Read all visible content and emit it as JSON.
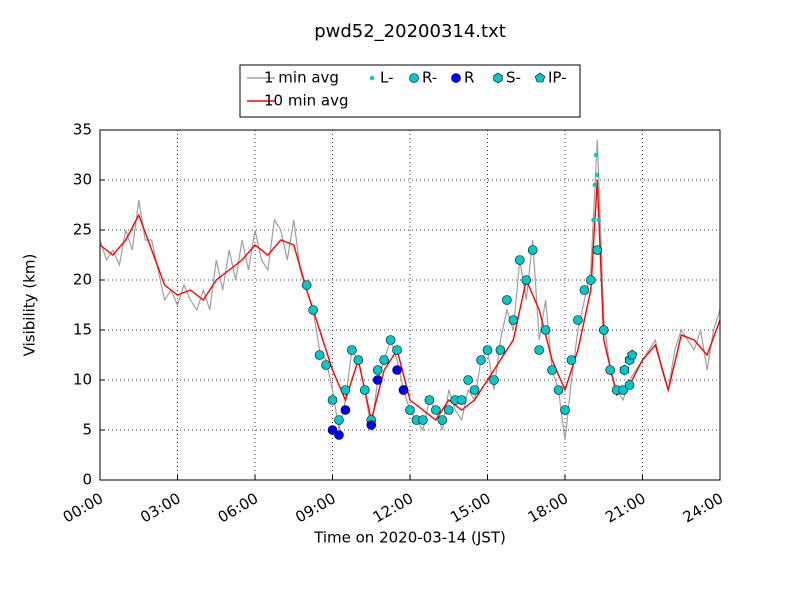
{
  "chart_data": {
    "type": "line",
    "title": "pwd52_20200314.txt",
    "x_label": "Time on 2020-03-14 (JST)",
    "y_label": "Visibility (km)",
    "xlim": [
      0,
      24
    ],
    "ylim": [
      0,
      35
    ],
    "grid": true,
    "xticks": [
      {
        "value": 0,
        "label": "00:00"
      },
      {
        "value": 3,
        "label": "03:00"
      },
      {
        "value": 6,
        "label": "06:00"
      },
      {
        "value": 9,
        "label": "09:00"
      },
      {
        "value": 12,
        "label": "12:00"
      },
      {
        "value": 15,
        "label": "15:00"
      },
      {
        "value": 18,
        "label": "18:00"
      },
      {
        "value": 21,
        "label": "21:00"
      },
      {
        "value": 24,
        "label": "24:00"
      }
    ],
    "yticks": [
      0,
      5,
      10,
      15,
      20,
      25,
      30,
      35
    ],
    "series": [
      {
        "name": "1 min avg",
        "color": "#a0a0a0",
        "marker": "line",
        "x": [
          0,
          0.25,
          0.5,
          0.75,
          1,
          1.25,
          1.5,
          1.75,
          2,
          2.25,
          2.5,
          2.75,
          3,
          3.25,
          3.5,
          3.75,
          4,
          4.25,
          4.5,
          4.75,
          5,
          5.25,
          5.5,
          5.75,
          6,
          6.25,
          6.5,
          6.75,
          7,
          7.25,
          7.5,
          7.75,
          8,
          8.25,
          8.5,
          8.75,
          9,
          9.25,
          9.5,
          9.75,
          10,
          10.25,
          10.5,
          10.75,
          11,
          11.25,
          11.5,
          11.75,
          12,
          12.25,
          12.5,
          12.75,
          13,
          13.25,
          13.5,
          13.75,
          14,
          14.25,
          14.5,
          14.75,
          15,
          15.25,
          15.5,
          15.75,
          16,
          16.25,
          16.5,
          16.75,
          17,
          17.25,
          17.5,
          17.75,
          18,
          18.25,
          18.5,
          18.75,
          19,
          19.25,
          19.5,
          19.75,
          20,
          20.25,
          20.5,
          20.75,
          21,
          21.25,
          21.5,
          21.75,
          22,
          22.25,
          22.5,
          22.75,
          23,
          23.25,
          23.5,
          23.75,
          24
        ],
        "values": [
          24,
          22,
          23,
          21.5,
          25,
          23,
          28,
          24,
          24,
          21,
          18,
          19,
          17.5,
          19.5,
          18,
          17,
          19,
          17,
          22,
          19,
          23,
          20,
          24,
          21,
          25,
          22,
          21,
          26,
          25,
          22,
          26,
          21,
          19,
          17,
          13,
          12,
          9,
          5,
          8,
          13,
          12,
          9,
          5,
          10,
          12,
          14,
          12,
          9,
          7,
          6,
          5,
          8,
          7,
          5,
          9,
          7,
          6,
          9,
          8,
          12,
          13,
          9,
          14,
          17,
          15,
          22,
          18,
          24,
          14,
          18,
          11,
          9,
          4,
          10,
          15,
          18,
          21,
          34,
          16,
          11,
          9,
          8,
          10,
          11,
          12,
          13,
          14,
          11,
          9,
          13,
          15,
          14,
          13,
          15,
          11,
          15,
          17
        ]
      },
      {
        "name": "10 min avg",
        "color": "#ff0000",
        "marker": "line",
        "x": [
          0,
          0.5,
          1,
          1.5,
          2,
          2.5,
          3,
          3.5,
          4,
          4.5,
          5,
          5.5,
          6,
          6.5,
          7,
          7.5,
          8,
          8.5,
          9,
          9.5,
          10,
          10.5,
          11,
          11.5,
          12,
          12.5,
          13,
          13.5,
          14,
          14.5,
          15,
          15.5,
          16,
          16.5,
          17,
          17.5,
          18,
          18.5,
          19,
          19.25,
          19.5,
          20,
          20.5,
          21,
          21.5,
          22,
          22.5,
          23,
          23.5,
          24
        ],
        "values": [
          23.5,
          22.5,
          24,
          26.5,
          23,
          19.5,
          18.5,
          19,
          18,
          20,
          21,
          22,
          23.5,
          22.5,
          24,
          23.5,
          19,
          15,
          11,
          8,
          12,
          6,
          11,
          13,
          8,
          7,
          6,
          8,
          7,
          8,
          10,
          12,
          14,
          20,
          17,
          12,
          9,
          13,
          19,
          30,
          14,
          8.5,
          9.5,
          12,
          13.5,
          9,
          14.5,
          14,
          12.5,
          16
        ]
      },
      {
        "name": "L-",
        "color": "#00c8c8",
        "marker": "dot",
        "x": [
          19.1,
          19.15,
          19.2,
          19.25,
          19.3
        ],
        "values": [
          26,
          29.5,
          32.5,
          30.5,
          26
        ]
      },
      {
        "name": "R-",
        "color": "#00c8c8",
        "marker": "circle",
        "x": [
          8,
          8.25,
          8.5,
          8.75,
          9,
          9.25,
          9.5,
          9.75,
          10,
          10.25,
          10.5,
          10.75,
          11,
          11.25,
          11.5,
          11.75,
          12,
          12.25,
          12.5,
          12.75,
          13,
          13.25,
          13.5,
          13.75,
          14,
          14.25,
          14.5,
          14.75,
          15,
          15.25,
          15.5,
          15.75,
          16,
          16.25,
          16.5,
          16.75,
          17,
          17.25,
          17.5,
          17.75,
          18,
          18.25,
          18.5,
          18.75,
          19,
          19.25,
          19.5,
          19.75,
          20,
          20.25,
          20.5
        ],
        "values": [
          19.5,
          17,
          12.5,
          11.5,
          8,
          6,
          9,
          13,
          12,
          9,
          6,
          11,
          12,
          14,
          13,
          9,
          7,
          6,
          6,
          8,
          7,
          6,
          7,
          8,
          8,
          10,
          9,
          12,
          13,
          10,
          13,
          18,
          16,
          22,
          20,
          23,
          13,
          15,
          11,
          9,
          7,
          12,
          16,
          19,
          20,
          23,
          15,
          11,
          9,
          9,
          9.5
        ]
      },
      {
        "name": "R",
        "color": "#0000ff",
        "marker": "circle",
        "x": [
          9,
          9.25,
          9.5,
          10.5,
          10.75,
          11.5,
          11.75
        ],
        "values": [
          5,
          4.5,
          7,
          5.5,
          10,
          11,
          9
        ]
      },
      {
        "name": "S-",
        "color": "#00c8c8",
        "marker": "hexagon",
        "x": [
          20.3,
          20.5
        ],
        "values": [
          11,
          12
        ]
      },
      {
        "name": "IP-",
        "color": "#00c8c8",
        "marker": "pentagon",
        "x": [
          20.6
        ],
        "values": [
          12.5
        ]
      }
    ]
  }
}
